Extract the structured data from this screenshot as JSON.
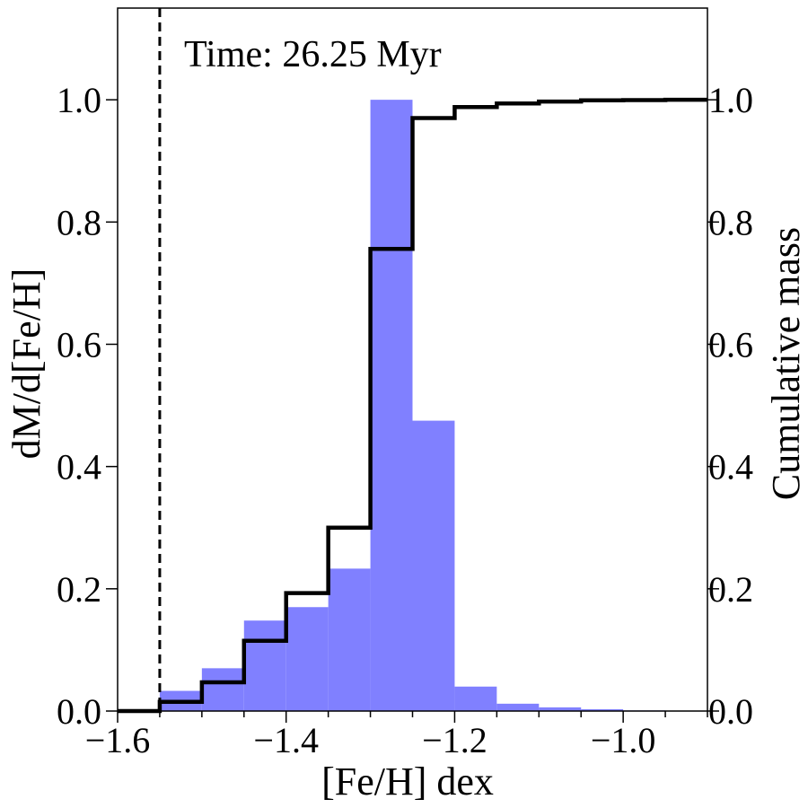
{
  "chart_data": {
    "type": "bar",
    "annotation": "Time: 26.25 Myr",
    "xlabel": "[Fe/H] dex",
    "ylabel_left": "dM/d[Fe/H]",
    "ylabel_right": "Cumulative mass",
    "xlim": [
      -1.6,
      -0.9
    ],
    "ylim": [
      0,
      1.15
    ],
    "x_ticks": [
      -1.6,
      -1.4,
      -1.2,
      -1.0
    ],
    "x_tick_labels": [
      "−1.6",
      "−1.4",
      "−1.2",
      "−1.0"
    ],
    "y_ticks": [
      0.0,
      0.2,
      0.4,
      0.6,
      0.8,
      1.0
    ],
    "y_tick_labels": [
      "0.0",
      "0.2",
      "0.4",
      "0.6",
      "0.8",
      "1.0"
    ],
    "histogram": {
      "bin_edges": [
        -1.6,
        -1.55,
        -1.5,
        -1.45,
        -1.4,
        -1.35,
        -1.3,
        -1.25,
        -1.2,
        -1.15,
        -1.1,
        -1.05,
        -1.0,
        -0.95,
        -0.9
      ],
      "values": [
        0.0,
        0.033,
        0.07,
        0.148,
        0.17,
        0.233,
        1.0,
        0.475,
        0.04,
        0.012,
        0.006,
        0.003,
        0.001,
        0.0005
      ],
      "color": "#8080ff"
    },
    "cumulative": {
      "bin_edges": [
        -1.6,
        -1.55,
        -1.5,
        -1.45,
        -1.4,
        -1.35,
        -1.3,
        -1.25,
        -1.2,
        -1.15,
        -1.1,
        -1.05,
        -1.0,
        -0.95,
        -0.9
      ],
      "values": [
        0.0,
        0.015,
        0.047,
        0.115,
        0.193,
        0.3,
        0.756,
        0.97,
        0.988,
        0.994,
        0.997,
        0.999,
        0.9995,
        1.0
      ],
      "color": "#000000"
    },
    "vline": {
      "x": -1.55,
      "style": "dashed",
      "color": "#000000"
    }
  }
}
